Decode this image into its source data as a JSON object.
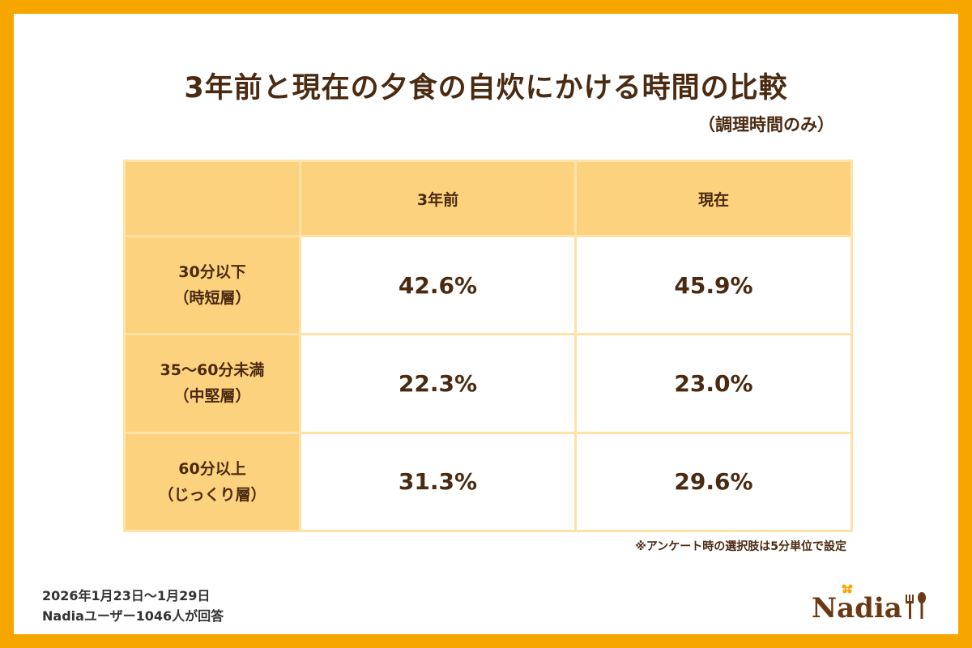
{
  "chart_data": {
    "type": "table",
    "title": "3年前と現在の夕食の自炊にかける時間の比較",
    "subtitle": "（調理時間のみ）",
    "columns": [
      "3年前",
      "現在"
    ],
    "rows": [
      {
        "label_line1": "30分以下",
        "label_line2": "（時短層）",
        "values": [
          "42.6%",
          "45.9%"
        ]
      },
      {
        "label_line1": "35～60分未満",
        "label_line2": "（中堅層）",
        "values": [
          "22.3%",
          "23.0%"
        ]
      },
      {
        "label_line1": "60分以上",
        "label_line2": "（じっくり層）",
        "values": [
          "31.3%",
          "29.6%"
        ]
      }
    ],
    "note": "※アンケート時の選択肢は5分単位で設定"
  },
  "footer": {
    "period": "2026年1月23日～1月29日",
    "respondents": "Nadiaユーザー1046人が回答"
  },
  "logo": {
    "text": "Nadia",
    "flower_color": "#f7a600",
    "text_color": "#6b3a12"
  }
}
